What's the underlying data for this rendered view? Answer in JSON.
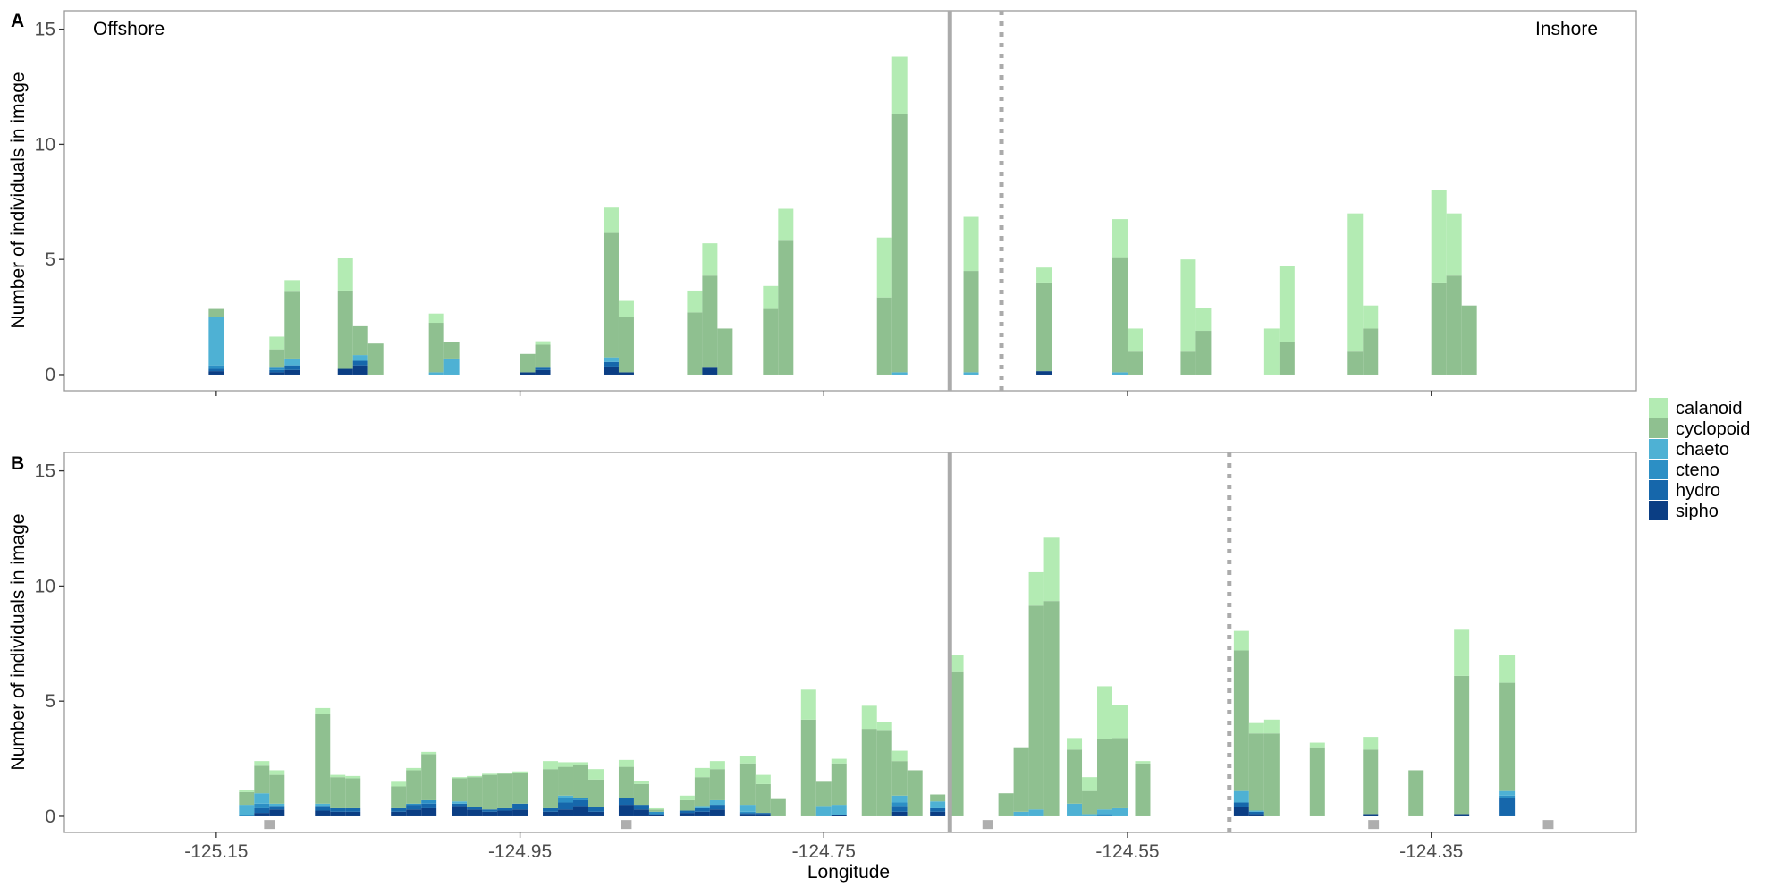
{
  "chart_data": {
    "type": "bar",
    "stacked": true,
    "xlabel": "Longitude",
    "ylabel": "Number of individuals in image",
    "xlim": [
      -125.25,
      -124.215
    ],
    "x_ticks": [
      -125.15,
      -124.95,
      -124.75,
      -124.55,
      -124.35
    ],
    "x_tick_labels": [
      "-125.15",
      "-124.95",
      "-124.75",
      "-124.55",
      "-124.35"
    ],
    "ylim": [
      -0.7,
      15.8
    ],
    "y_ticks": [
      0,
      5,
      10,
      15
    ],
    "y_tick_labels": [
      "0",
      "5",
      "10",
      "15"
    ],
    "bin_width": 0.01,
    "grid": false,
    "legend_placement": "right",
    "legend": [
      {
        "name": "calanoid",
        "color": "#b3ebb3"
      },
      {
        "name": "cyclopoid",
        "color": "#8fc090"
      },
      {
        "name": "chaeto",
        "color": "#4eb1d4"
      },
      {
        "name": "cteno",
        "color": "#2c8fc5"
      },
      {
        "name": "hydro",
        "color": "#1667ab"
      },
      {
        "name": "sipho",
        "color": "#0b3e84"
      }
    ],
    "panels": [
      {
        "label": "A",
        "corner_labels": [
          "Offshore",
          "Inshore"
        ],
        "vline_solid": -124.667,
        "vline_dotted": -124.633,
        "gray_markers": [],
        "bars": [
          {
            "x": -125.15,
            "stack": [
              0.15,
              0.1,
              0.15,
              2.1,
              0.35
            ]
          },
          {
            "x": -125.11,
            "stack": [
              0.1,
              0.1,
              0.1,
              0,
              0.8,
              0.55
            ]
          },
          {
            "x": -125.1,
            "stack": [
              0.2,
              0.2,
              0,
              0.3,
              2.9,
              0.5
            ]
          },
          {
            "x": -125.065,
            "stack": [
              0.25,
              0,
              0,
              0,
              3.4,
              1.4
            ]
          },
          {
            "x": -125.055,
            "stack": [
              0.4,
              0.2,
              0,
              0.25,
              1.25
            ]
          },
          {
            "x": -125.045,
            "stack": [
              0,
              0,
              0,
              0,
              1.35
            ]
          },
          {
            "x": -125.005,
            "stack": [
              0,
              0,
              0,
              0.1,
              2.15,
              0.4
            ]
          },
          {
            "x": -124.995,
            "stack": [
              0,
              0,
              0,
              0.7,
              0.7
            ]
          },
          {
            "x": -124.945,
            "stack": [
              0.1,
              0,
              0,
              0,
              0.8
            ]
          },
          {
            "x": -124.935,
            "stack": [
              0.2,
              0.1,
              0,
              0,
              1.0,
              0.15
            ]
          },
          {
            "x": -124.89,
            "stack": [
              0.35,
              0.2,
              0,
              0.2,
              5.4,
              1.1
            ]
          },
          {
            "x": -124.88,
            "stack": [
              0.1,
              0,
              0,
              0,
              2.4,
              0.7
            ]
          },
          {
            "x": -124.835,
            "stack": [
              0,
              0,
              0,
              0,
              2.7,
              0.95
            ]
          },
          {
            "x": -124.825,
            "stack": [
              0.3,
              0,
              0,
              0,
              4.0,
              1.4
            ]
          },
          {
            "x": -124.815,
            "stack": [
              0,
              0,
              0,
              0,
              2.0
            ]
          },
          {
            "x": -124.785,
            "stack": [
              0,
              0,
              0,
              0,
              2.85,
              1.0
            ]
          },
          {
            "x": -124.775,
            "stack": [
              0,
              0,
              0,
              0,
              5.85,
              1.35
            ]
          },
          {
            "x": -124.71,
            "stack": [
              0,
              0,
              0,
              0,
              3.35,
              2.6
            ]
          },
          {
            "x": -124.7,
            "stack": [
              0,
              0,
              0,
              0.1,
              11.2,
              2.5
            ]
          },
          {
            "x": -124.653,
            "stack": [
              0,
              0,
              0,
              0.1,
              4.4,
              2.35
            ]
          },
          {
            "x": -124.605,
            "stack": [
              0.15,
              0,
              0,
              0,
              3.85,
              0.65
            ]
          },
          {
            "x": -124.555,
            "stack": [
              0,
              0,
              0,
              0.1,
              5.0,
              1.65
            ]
          },
          {
            "x": -124.545,
            "stack": [
              0,
              0,
              0,
              0,
              1.0,
              1.0
            ]
          },
          {
            "x": -124.51,
            "stack": [
              0,
              0,
              0,
              0,
              1.0,
              4.0
            ]
          },
          {
            "x": -124.5,
            "stack": [
              0,
              0,
              0,
              0,
              1.9,
              1.0
            ]
          },
          {
            "x": -124.455,
            "stack": [
              0,
              0,
              0,
              0,
              0,
              2.0
            ]
          },
          {
            "x": -124.445,
            "stack": [
              0,
              0,
              0,
              0,
              1.4,
              3.3
            ]
          },
          {
            "x": -124.4,
            "stack": [
              0,
              0,
              0,
              0,
              1.0,
              6.0
            ]
          },
          {
            "x": -124.39,
            "stack": [
              0,
              0,
              0,
              0,
              2.0,
              1.0
            ]
          },
          {
            "x": -124.345,
            "stack": [
              0,
              0,
              0,
              0,
              4.0,
              4.0
            ]
          },
          {
            "x": -124.335,
            "stack": [
              0,
              0,
              0,
              0,
              4.3,
              2.7
            ]
          },
          {
            "x": -124.325,
            "stack": [
              0,
              0,
              0,
              0,
              3.0
            ]
          }
        ]
      },
      {
        "label": "B",
        "corner_labels": [],
        "vline_solid": -124.667,
        "vline_dotted": -124.483,
        "gray_markers": [
          -125.115,
          -124.88,
          -124.642,
          -124.388,
          -124.273
        ],
        "bars": [
          {
            "x": -125.13,
            "stack": [
              0,
              0,
              0.05,
              0.45,
              0.55,
              0.1
            ]
          },
          {
            "x": -125.12,
            "stack": [
              0.15,
              0.2,
              0.2,
              0.45,
              1.2,
              0.2
            ]
          },
          {
            "x": -125.11,
            "stack": [
              0.3,
              0.15,
              0,
              0.1,
              1.25,
              0.2
            ]
          },
          {
            "x": -125.08,
            "stack": [
              0.25,
              0.2,
              0,
              0.1,
              3.9,
              0.25
            ]
          },
          {
            "x": -125.07,
            "stack": [
              0.2,
              0.15,
              0,
              0,
              1.35,
              0.1
            ]
          },
          {
            "x": -125.06,
            "stack": [
              0.2,
              0.15,
              0,
              0,
              1.3,
              0.1
            ]
          },
          {
            "x": -125.03,
            "stack": [
              0.2,
              0.15,
              0,
              0,
              0.95,
              0.2
            ]
          },
          {
            "x": -125.02,
            "stack": [
              0.3,
              0.2,
              0.05,
              0,
              1.45,
              0.1
            ]
          },
          {
            "x": -125.01,
            "stack": [
              0.35,
              0.2,
              0.15,
              0,
              2.0,
              0.1
            ]
          },
          {
            "x": -124.99,
            "stack": [
              0.45,
              0.1,
              0,
              0.1,
              1.0,
              0.05
            ]
          },
          {
            "x": -124.98,
            "stack": [
              0.3,
              0.1,
              0,
              0,
              1.3,
              0.05
            ]
          },
          {
            "x": -124.97,
            "stack": [
              0.2,
              0.1,
              0,
              0,
              1.5,
              0.05
            ]
          },
          {
            "x": -124.96,
            "stack": [
              0.25,
              0.1,
              0,
              0,
              1.5,
              0.05
            ]
          },
          {
            "x": -124.95,
            "stack": [
              0.3,
              0.25,
              0,
              0,
              1.35,
              0.05
            ]
          },
          {
            "x": -124.93,
            "stack": [
              0.2,
              0.15,
              0,
              0,
              1.7,
              0.35
            ]
          },
          {
            "x": -124.92,
            "stack": [
              0.3,
              0.3,
              0.2,
              0.1,
              1.25,
              0.2
            ]
          },
          {
            "x": -124.91,
            "stack": [
              0.45,
              0.25,
              0.1,
              0,
              1.45,
              0.1
            ]
          },
          {
            "x": -124.9,
            "stack": [
              0.2,
              0.2,
              0,
              0,
              1.2,
              0.45
            ]
          },
          {
            "x": -124.88,
            "stack": [
              0.5,
              0.3,
              0,
              0,
              1.35,
              0.3
            ]
          },
          {
            "x": -124.87,
            "stack": [
              0.3,
              0.2,
              0,
              0,
              0.9,
              0.15
            ]
          },
          {
            "x": -124.86,
            "stack": [
              0.05,
              0.05,
              0.1,
              0,
              0.1,
              0.05
            ]
          },
          {
            "x": -124.84,
            "stack": [
              0.15,
              0.1,
              0,
              0,
              0.45,
              0.2
            ]
          },
          {
            "x": -124.83,
            "stack": [
              0.2,
              0.15,
              0,
              0.1,
              1.25,
              0.4
            ]
          },
          {
            "x": -124.82,
            "stack": [
              0.3,
              0.2,
              0,
              0.2,
              1.35,
              0.35
            ]
          },
          {
            "x": -124.8,
            "stack": [
              0.1,
              0.05,
              0.05,
              0.3,
              1.8,
              0.3
            ]
          },
          {
            "x": -124.79,
            "stack": [
              0.1,
              0.05,
              0,
              0,
              1.25,
              0.4
            ]
          },
          {
            "x": -124.78,
            "stack": [
              0,
              0,
              0,
              0,
              0.75
            ]
          },
          {
            "x": -124.76,
            "stack": [
              0,
              0,
              0,
              0,
              4.2,
              1.3
            ]
          },
          {
            "x": -124.75,
            "stack": [
              0,
              0,
              0,
              0.45,
              1.05
            ]
          },
          {
            "x": -124.74,
            "stack": [
              0.05,
              0,
              0,
              0.45,
              1.8,
              0.2
            ]
          },
          {
            "x": -124.72,
            "stack": [
              0,
              0,
              0,
              0,
              3.8,
              1.0
            ]
          },
          {
            "x": -124.71,
            "stack": [
              0,
              0,
              0,
              0,
              3.75,
              0.35
            ]
          },
          {
            "x": -124.7,
            "stack": [
              0.2,
              0.25,
              0.15,
              0.3,
              1.5,
              0.45
            ]
          },
          {
            "x": -124.69,
            "stack": [
              0,
              0,
              0,
              0,
              2.0
            ]
          },
          {
            "x": -124.675,
            "stack": [
              0.2,
              0.15,
              0,
              0.3,
              0.3
            ]
          },
          {
            "x": -124.663,
            "stack": [
              0,
              0,
              0,
              0,
              6.3,
              0.7
            ]
          },
          {
            "x": -124.63,
            "stack": [
              0,
              0,
              0,
              0,
              1.0
            ]
          },
          {
            "x": -124.62,
            "stack": [
              0,
              0,
              0,
              0.2,
              2.8
            ]
          },
          {
            "x": -124.61,
            "stack": [
              0,
              0,
              0,
              0.3,
              8.85,
              1.45
            ]
          },
          {
            "x": -124.6,
            "stack": [
              0,
              0,
              0,
              0,
              9.35,
              2.75
            ]
          },
          {
            "x": -124.585,
            "stack": [
              0,
              0,
              0,
              0.55,
              2.35,
              0.5
            ]
          },
          {
            "x": -124.575,
            "stack": [
              0,
              0,
              0,
              0.1,
              1.0,
              0.6
            ]
          },
          {
            "x": -124.565,
            "stack": [
              0,
              0,
              0.1,
              0.2,
              3.05,
              2.3
            ]
          },
          {
            "x": -124.555,
            "stack": [
              0,
              0,
              0,
              0.35,
              3.05,
              1.45
            ]
          },
          {
            "x": -124.54,
            "stack": [
              0,
              0,
              0,
              0,
              2.3,
              0.1
            ]
          },
          {
            "x": -124.475,
            "stack": [
              0.4,
              0.2,
              0,
              0.5,
              6.1,
              0.85
            ]
          },
          {
            "x": -124.465,
            "stack": [
              0.1,
              0.1,
              0,
              0.05,
              3.35,
              0.45
            ]
          },
          {
            "x": -124.455,
            "stack": [
              0,
              0,
              0,
              0,
              3.6,
              0.6
            ]
          },
          {
            "x": -124.425,
            "stack": [
              0,
              0,
              0,
              0,
              3.0,
              0.2
            ]
          },
          {
            "x": -124.39,
            "stack": [
              0.1,
              0,
              0,
              0,
              2.8,
              0.55
            ]
          },
          {
            "x": -124.36,
            "stack": [
              0,
              0,
              0,
              0,
              2.0
            ]
          },
          {
            "x": -124.33,
            "stack": [
              0.1,
              0,
              0,
              0,
              6.0,
              2.0
            ]
          },
          {
            "x": -124.3,
            "stack": [
              0,
              0.8,
              0.1,
              0.2,
              4.7,
              1.2
            ]
          }
        ]
      }
    ]
  }
}
